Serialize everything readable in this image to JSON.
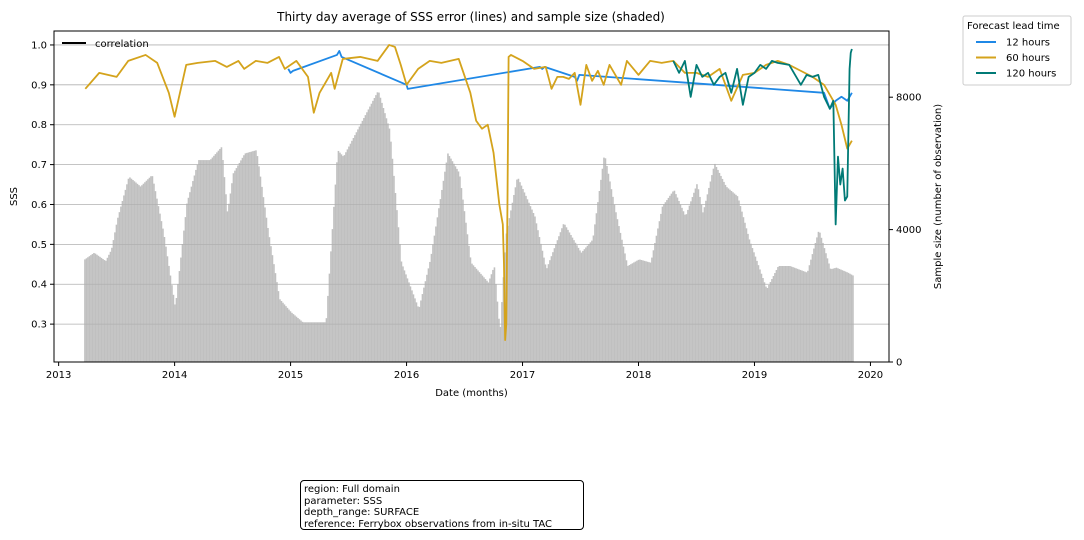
{
  "chart_data": {
    "type": "line",
    "title": "Thirty day average of SSS error (lines) and sample size (shaded)",
    "xlabel": "Date (months)",
    "ylabel": "SSS",
    "y2label": "Sample size (number of observation)",
    "xlim": [
      2012.96,
      2020.16
    ],
    "ylim": [
      0.205,
      1.035
    ],
    "y2lim": [
      0,
      10000
    ],
    "x_ticks": [
      2013,
      2014,
      2015,
      2016,
      2017,
      2018,
      2019,
      2020
    ],
    "x_tick_labels": [
      "2013",
      "2014",
      "2015",
      "2016",
      "2017",
      "2018",
      "2019",
      "2020"
    ],
    "y_ticks": [
      0.3,
      0.4,
      0.5,
      0.6,
      0.7,
      0.8,
      0.9,
      1.0
    ],
    "y_tick_labels": [
      "0.3",
      "0.4",
      "0.5",
      "0.6",
      "0.7",
      "0.8",
      "0.9",
      "1.0"
    ],
    "y2_ticks": [
      0,
      4000,
      8000
    ],
    "y2_tick_labels": [
      "0",
      "4000",
      "8000"
    ],
    "grid": "horizontal",
    "legend_inner": {
      "label": "correlation",
      "color": "#000000",
      "placement": "top-left"
    },
    "legend": {
      "title": "Forecast lead time",
      "placement": "outside-top-right",
      "entries": [
        {
          "name": "12 hours",
          "color": "#1f88e6"
        },
        {
          "name": "60 hours",
          "color": "#d4a31c"
        },
        {
          "name": "120 hours",
          "color": "#007a76"
        }
      ]
    },
    "sample_size": {
      "color": "#c0c0c0",
      "x": [
        2013.22,
        2013.3,
        2013.4,
        2013.45,
        2013.5,
        2013.6,
        2013.7,
        2013.8,
        2013.9,
        2014.0,
        2014.1,
        2014.2,
        2014.3,
        2014.4,
        2014.45,
        2014.5,
        2014.6,
        2014.7,
        2014.8,
        2014.9,
        2015.0,
        2015.1,
        2015.2,
        2015.3,
        2015.4,
        2015.45,
        2015.6,
        2015.75,
        2015.85,
        2015.95,
        2016.1,
        2016.2,
        2016.35,
        2016.45,
        2016.55,
        2016.7,
        2016.75,
        2016.8,
        2016.85,
        2016.95,
        2017.1,
        2017.2,
        2017.35,
        2017.5,
        2017.6,
        2017.7,
        2017.8,
        2017.9,
        2018.0,
        2018.1,
        2018.2,
        2018.3,
        2018.4,
        2018.5,
        2018.55,
        2018.65,
        2018.75,
        2018.85,
        2018.95,
        2019.1,
        2019.2,
        2019.3,
        2019.45,
        2019.55,
        2019.65,
        2019.7,
        2019.8,
        2019.85
      ],
      "values": [
        3100,
        3300,
        3050,
        3400,
        4300,
        5600,
        5300,
        5650,
        3900,
        1650,
        4800,
        6100,
        6100,
        6500,
        4500,
        5700,
        6300,
        6400,
        4000,
        1900,
        1500,
        1200,
        1200,
        1200,
        6400,
        6200,
        7200,
        8200,
        7000,
        3000,
        1600,
        3100,
        6300,
        5700,
        3000,
        2400,
        2900,
        900,
        3800,
        5600,
        4400,
        2800,
        4200,
        3300,
        3700,
        6300,
        4500,
        2900,
        3100,
        3000,
        4700,
        5200,
        4400,
        5400,
        4500,
        6000,
        5300,
        5000,
        3700,
        2200,
        2900,
        2900,
        2700,
        4000,
        2800,
        2850,
        2700,
        2600
      ]
    },
    "series": [
      {
        "name": "12 hours",
        "color": "#1f88e6",
        "x": [
          2014.98,
          2015.0,
          2015.02,
          2015.4,
          2015.42,
          2015.44,
          2016.0,
          2016.01,
          2017.15,
          2017.17,
          2017.19,
          2017.45,
          2017.47,
          2017.49,
          2019.6,
          2019.65,
          2019.7,
          2019.75,
          2019.8,
          2019.84
        ],
        "values": [
          0.94,
          0.93,
          0.935,
          0.975,
          0.985,
          0.97,
          0.9,
          0.89,
          0.945,
          0.94,
          0.945,
          0.92,
          0.91,
          0.925,
          0.88,
          0.84,
          0.86,
          0.87,
          0.86,
          0.88
        ]
      },
      {
        "name": "60 hours",
        "color": "#d4a31c",
        "x": [
          2013.23,
          2013.35,
          2013.5,
          2013.6,
          2013.75,
          2013.85,
          2013.95,
          2014.0,
          2014.1,
          2014.2,
          2014.35,
          2014.45,
          2014.55,
          2014.6,
          2014.7,
          2014.8,
          2014.9,
          2014.95,
          2015.05,
          2015.15,
          2015.2,
          2015.25,
          2015.35,
          2015.38,
          2015.45,
          2015.6,
          2015.75,
          2015.85,
          2015.9,
          2015.95,
          2016.0,
          2016.1,
          2016.2,
          2016.3,
          2016.45,
          2016.55,
          2016.6,
          2016.65,
          2016.7,
          2016.75,
          2016.8,
          2016.83,
          2016.84,
          2016.85,
          2016.86,
          2016.87,
          2016.88,
          2016.9,
          2017.0,
          2017.1,
          2017.2,
          2017.25,
          2017.3,
          2017.35,
          2017.4,
          2017.45,
          2017.5,
          2017.55,
          2017.6,
          2017.65,
          2017.7,
          2017.75,
          2017.85,
          2017.9,
          2018.0,
          2018.1,
          2018.2,
          2018.3,
          2018.4,
          2018.5,
          2018.6,
          2018.7,
          2018.8,
          2018.9,
          2019.0,
          2019.1,
          2019.2,
          2019.3,
          2019.4,
          2019.5,
          2019.6,
          2019.7,
          2019.75,
          2019.8,
          2019.84
        ],
        "values": [
          0.89,
          0.93,
          0.92,
          0.96,
          0.975,
          0.955,
          0.88,
          0.82,
          0.95,
          0.955,
          0.96,
          0.945,
          0.96,
          0.94,
          0.96,
          0.955,
          0.97,
          0.94,
          0.96,
          0.92,
          0.83,
          0.88,
          0.93,
          0.89,
          0.965,
          0.97,
          0.96,
          1.0,
          0.995,
          0.95,
          0.9,
          0.94,
          0.96,
          0.955,
          0.965,
          0.88,
          0.81,
          0.79,
          0.8,
          0.73,
          0.6,
          0.55,
          0.45,
          0.26,
          0.3,
          0.6,
          0.97,
          0.975,
          0.96,
          0.94,
          0.945,
          0.89,
          0.92,
          0.92,
          0.915,
          0.93,
          0.85,
          0.95,
          0.91,
          0.935,
          0.9,
          0.95,
          0.9,
          0.96,
          0.925,
          0.96,
          0.955,
          0.96,
          0.93,
          0.93,
          0.92,
          0.94,
          0.86,
          0.925,
          0.93,
          0.95,
          0.96,
          0.95,
          0.935,
          0.92,
          0.9,
          0.85,
          0.8,
          0.74,
          0.76
        ]
      },
      {
        "name": "120 hours",
        "color": "#007a76",
        "x": [
          2018.3,
          2018.35,
          2018.4,
          2018.45,
          2018.5,
          2018.55,
          2018.6,
          2018.65,
          2018.7,
          2018.75,
          2018.8,
          2018.85,
          2018.9,
          2018.95,
          2019.0,
          2019.05,
          2019.1,
          2019.15,
          2019.2,
          2019.3,
          2019.4,
          2019.45,
          2019.5,
          2019.55,
          2019.6,
          2019.65,
          2019.68,
          2019.7,
          2019.72,
          2019.74,
          2019.76,
          2019.78,
          2019.8,
          2019.82,
          2019.83,
          2019.84
        ],
        "values": [
          0.96,
          0.93,
          0.96,
          0.87,
          0.95,
          0.92,
          0.93,
          0.9,
          0.92,
          0.93,
          0.88,
          0.94,
          0.85,
          0.92,
          0.93,
          0.95,
          0.94,
          0.96,
          0.955,
          0.95,
          0.9,
          0.925,
          0.92,
          0.925,
          0.87,
          0.84,
          0.86,
          0.55,
          0.72,
          0.65,
          0.69,
          0.61,
          0.62,
          0.94,
          0.98,
          0.99
        ]
      }
    ]
  },
  "info_box": {
    "lines": [
      "region: Full domain",
      "parameter: SSS",
      "depth_range: SURFACE",
      "reference: Ferrybox observations from in-situ TAC"
    ]
  }
}
